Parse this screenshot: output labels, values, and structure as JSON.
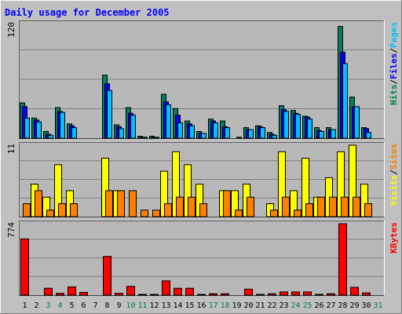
{
  "chart_data": {
    "type": "bar",
    "title": "Daily usage for December 2005",
    "x_ticks": [
      "1",
      "2",
      "3",
      "4",
      "5",
      "6",
      "7",
      "8",
      "9",
      "10",
      "11",
      "12",
      "13",
      "14",
      "15",
      "16",
      "17",
      "18",
      "19",
      "20",
      "21",
      "22",
      "23",
      "24",
      "25",
      "26",
      "27",
      "28",
      "29",
      "30",
      "31"
    ],
    "weekend_days": [
      3,
      4,
      10,
      11,
      17,
      18,
      24,
      25,
      31
    ],
    "grid": true,
    "panels": [
      {
        "name": "hits-files-pages",
        "ymax_label": "120",
        "ymax": 120,
        "legend": [
          {
            "text": "Hits",
            "color": "#008040"
          },
          {
            "text": "/",
            "color": "#000000"
          },
          {
            "text": "Files",
            "color": "#0000ff"
          },
          {
            "text": "/",
            "color": "#000000"
          },
          {
            "text": "Pages",
            "color": "#00c0ff"
          }
        ],
        "series": [
          {
            "name": "Hits",
            "color": "#008060",
            "values": [
              37,
              21,
              7,
              32,
              15,
              0,
              0,
              66,
              14,
              32,
              2,
              2,
              46,
              31,
              18,
              7,
              20,
              18,
              0,
              11,
              13,
              6,
              34,
              29,
              23,
              11,
              11,
              117,
              43,
              11,
              0
            ]
          },
          {
            "name": "Files",
            "color": "#0000ff",
            "values": [
              33,
              19,
              4,
              28,
              13,
              0,
              0,
              57,
              12,
              26,
              1,
              1,
              38,
              24,
              15,
              5,
              18,
              12,
              0,
              9,
              12,
              4,
              30,
              26,
              22,
              8,
              9,
              90,
              33,
              10,
              0
            ]
          },
          {
            "name": "Pages",
            "color": "#00c0ff",
            "values": [
              21,
              17,
              3,
              27,
              11,
              0,
              0,
              50,
              10,
              24,
              1,
              1,
              35,
              16,
              13,
              5,
              16,
              11,
              1,
              9,
              11,
              3,
              28,
              25,
              20,
              7,
              9,
              78,
              33,
              6,
              0
            ]
          }
        ]
      },
      {
        "name": "visits-sites",
        "ymax_label": "11",
        "ymax": 11,
        "legend": [
          {
            "text": "Visits",
            "color": "#ffff00"
          },
          {
            "text": "/",
            "color": "#000000"
          },
          {
            "text": "Sites",
            "color": "#ff8000"
          }
        ],
        "series": [
          {
            "name": "Visits",
            "color": "#ffff00",
            "values": [
              0,
              5,
              3,
              8,
              4,
              0,
              0,
              9,
              4,
              0,
              0,
              0,
              7,
              10,
              8,
              5,
              0,
              4,
              4,
              5,
              0,
              2,
              10,
              4,
              9,
              3,
              6,
              10,
              11,
              5,
              0
            ]
          },
          {
            "name": "Sites",
            "color": "#ff8000",
            "values": [
              2,
              4,
              1,
              2,
              2,
              0,
              0,
              4,
              4,
              4,
              1,
              1,
              2,
              3,
              3,
              2,
              0,
              4,
              1,
              3,
              0,
              1,
              3,
              1,
              2,
              3,
              3,
              3,
              3,
              2,
              0
            ]
          }
        ]
      },
      {
        "name": "kbytes",
        "ymax_label": "774",
        "ymax": 774,
        "legend": [
          {
            "text": "KBytes",
            "color": "#ff0000"
          }
        ],
        "series": [
          {
            "name": "KBytes",
            "color": "#ff0000",
            "values": [
              610,
              0,
              75,
              20,
              90,
              30,
              0,
              420,
              20,
              95,
              2,
              2,
              155,
              75,
              75,
              7,
              15,
              15,
              0,
              65,
              7,
              15,
              35,
              35,
              35,
              7,
              15,
              774,
              85,
              25,
              0
            ]
          }
        ]
      }
    ]
  }
}
